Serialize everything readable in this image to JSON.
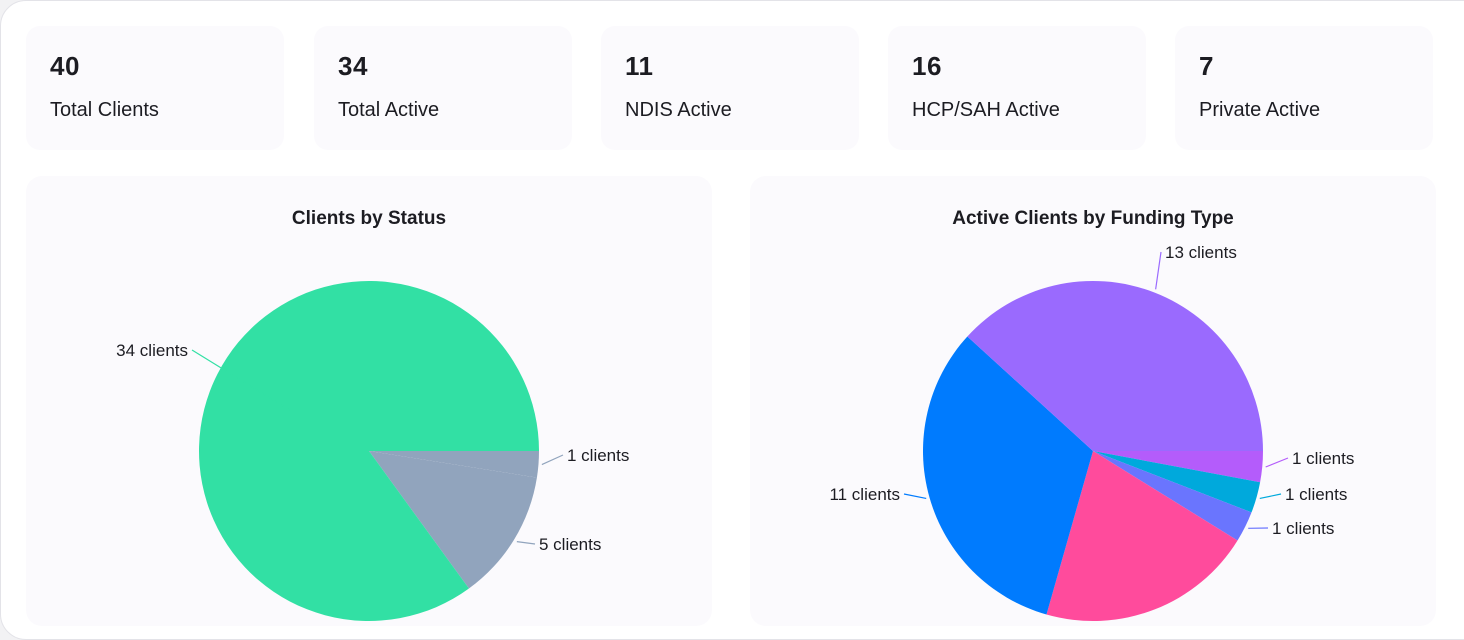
{
  "stats": [
    {
      "value": "40",
      "label": "Total Clients"
    },
    {
      "value": "34",
      "label": "Total Active"
    },
    {
      "value": "11",
      "label": "NDIS Active"
    },
    {
      "value": "16",
      "label": "HCP/SAH Active"
    },
    {
      "value": "7",
      "label": "Private Active"
    }
  ],
  "chart_data": [
    {
      "type": "pie",
      "title": "Clients by Status",
      "slices": [
        {
          "label": "34 clients",
          "value": 34,
          "color": "#32e0a4"
        },
        {
          "label": "5 clients",
          "value": 5,
          "color": "#91a4bd"
        },
        {
          "label": "1 clients",
          "value": 1,
          "color": "#91a4bd"
        }
      ]
    },
    {
      "type": "pie",
      "title": "Active Clients by Funding Type",
      "slices": [
        {
          "label": "13 clients",
          "value": 13,
          "color": "#9a6afe"
        },
        {
          "label": "11 clients",
          "value": 11,
          "color": "#007bfe"
        },
        {
          "label": "1 clients",
          "value": 1,
          "color": "#b45cfb"
        },
        {
          "label": "1 clients",
          "value": 1,
          "color": "#00a9dc"
        },
        {
          "label": "1 clients",
          "value": 1,
          "color": "#6a75fe"
        }
      ]
    }
  ]
}
